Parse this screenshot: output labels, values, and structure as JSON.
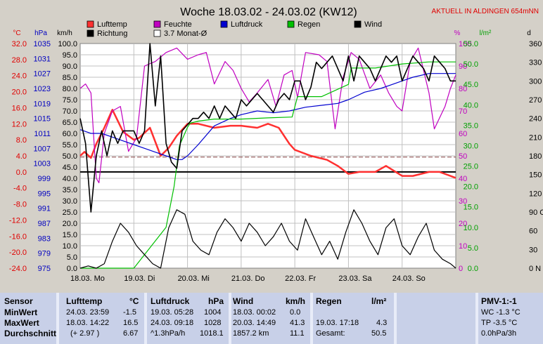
{
  "header": {
    "title": "Woche 18.03.02 - 24.03.02 (KW12)",
    "station": "AKTUELL IN ALDINGEN 654mNN"
  },
  "legend": [
    {
      "label": "Lufttemp",
      "color": "#ff3030",
      "fill": true
    },
    {
      "label": "Feuchte",
      "color": "#c000c0",
      "fill": true
    },
    {
      "label": "Luftdruck",
      "color": "#0000d0",
      "fill": true
    },
    {
      "label": "Regen",
      "color": "#00c000",
      "fill": true
    },
    {
      "label": "Wind",
      "color": "#000000",
      "fill": true
    },
    {
      "label": "Richtung",
      "color": "#000000",
      "fill": true
    },
    {
      "label": "3.7 Monat-Ø",
      "color": "#000000",
      "fill": false
    }
  ],
  "chart_data": {
    "type": "line",
    "x_days": [
      "18.03. Mo",
      "19.03. Di",
      "20.03. Mi",
      "21.03. Do",
      "22.03. Fr",
      "23.03. Sa",
      "24.03. So"
    ],
    "axes": [
      {
        "unit": "°C",
        "range": [
          -24,
          32
        ],
        "ticks": [
          "32.0",
          "28.0",
          "24.0",
          "20.0",
          "16.0",
          "12.0",
          "8.0",
          "4.0",
          "0.0",
          "-4.0",
          "-8.0",
          "-12.0",
          "-16.0",
          "-20.0",
          "-24.0"
        ],
        "color": "#e00000"
      },
      {
        "unit": "hPa",
        "range": [
          975,
          1035
        ],
        "ticks": [
          "1035",
          "1031",
          "1027",
          "1023",
          "1019",
          "1015",
          "1011",
          "1007",
          "1003",
          "999",
          "995",
          "991",
          "987",
          "983",
          "979",
          "975"
        ],
        "color": "#0000c0"
      },
      {
        "unit": "km/h",
        "range": [
          0,
          100
        ],
        "ticks": [
          "100.0",
          "95.0",
          "90.0",
          "85.0",
          "80.0",
          "75.0",
          "70.0",
          "65.0",
          "60.0",
          "55.0",
          "50.0",
          "45.0",
          "40.0",
          "35.0",
          "30.0",
          "25.0",
          "20.0",
          "15.0",
          "10.0",
          "5.0",
          "0.0"
        ],
        "color": "#000000"
      },
      {
        "unit": "%",
        "range": [
          0,
          100
        ],
        "ticks": [
          "100",
          "90",
          "80",
          "70",
          "60",
          "50",
          "40",
          "30",
          "20",
          "10",
          "0"
        ],
        "color": "#c000c0"
      },
      {
        "unit": "l/m²",
        "range": [
          0,
          55
        ],
        "ticks": [
          "55.0",
          "50.0",
          "45.0",
          "40.0",
          "35.0",
          "30.0",
          "25.0",
          "20.0",
          "15.0",
          "10.0",
          "5.0",
          "0.0"
        ],
        "color": "#00a000"
      },
      {
        "unit": "d",
        "range": [
          0,
          360
        ],
        "ticks": [
          "360 N",
          "330",
          "300",
          "270 W",
          "240",
          "210",
          "180 S",
          "150",
          "120",
          "90 O",
          "60",
          "30",
          "0 N"
        ],
        "color": "#000000"
      }
    ],
    "series": [
      {
        "name": "Lufttemp",
        "color": "#ff3030",
        "axis": "°C",
        "x": [
          0,
          0.08,
          0.2,
          0.3,
          0.45,
          0.6,
          0.8,
          1.0,
          1.1,
          1.3,
          1.5,
          1.65,
          1.8,
          2.0,
          2.2,
          2.5,
          2.8,
          3.0,
          3.3,
          3.5,
          3.7,
          3.9,
          4.0,
          4.3,
          4.6,
          4.8,
          5.0,
          5.2,
          5.5,
          5.7,
          6.0,
          6.2,
          6.5,
          6.7,
          7.0
        ],
        "y": [
          4.0,
          5.0,
          3.5,
          7.0,
          11.0,
          15.5,
          10.0,
          8.0,
          8.5,
          11.0,
          4.0,
          6.0,
          9.0,
          12.0,
          12.0,
          11.0,
          11.5,
          11.5,
          11.0,
          12.0,
          11.0,
          7.0,
          5.5,
          4.0,
          3.0,
          1.5,
          -0.5,
          0.0,
          0.0,
          1.5,
          -1.0,
          -1.0,
          0.0,
          0.0,
          -1.5
        ]
      },
      {
        "name": "Feuchte",
        "color": "#c000c0",
        "axis": "%",
        "x": [
          0,
          0.1,
          0.2,
          0.3,
          0.35,
          0.45,
          0.6,
          0.75,
          0.9,
          1.05,
          1.2,
          1.4,
          1.6,
          1.8,
          2.0,
          2.2,
          2.35,
          2.5,
          2.7,
          2.85,
          3.0,
          3.15,
          3.3,
          3.5,
          3.65,
          3.8,
          3.95,
          4.05,
          4.2,
          4.45,
          4.6,
          4.75,
          4.9,
          5.05,
          5.2,
          5.4,
          5.6,
          5.75,
          5.9,
          6.0,
          6.15,
          6.3,
          6.5,
          6.6,
          6.8,
          6.9,
          7.0
        ],
        "y": [
          80,
          82,
          78,
          40,
          38,
          60,
          70,
          72,
          52,
          58,
          90,
          92,
          96,
          98,
          93,
          95,
          96,
          82,
          92,
          88,
          80,
          74,
          78,
          84,
          72,
          86,
          88,
          76,
          96,
          95,
          92,
          62,
          85,
          96,
          93,
          80,
          86,
          78,
          72,
          70,
          92,
          98,
          78,
          62,
          72,
          80,
          86
        ]
      },
      {
        "name": "Luftdruck",
        "color": "#0000d0",
        "axis": "hPa",
        "x": [
          0,
          0.2,
          0.4,
          0.6,
          0.8,
          1.0,
          1.2,
          1.4,
          1.6,
          1.8,
          1.9,
          2.0,
          2.2,
          2.5,
          2.8,
          3.0,
          3.3,
          3.6,
          3.9,
          4.2,
          4.5,
          4.8,
          5.0,
          5.3,
          5.6,
          5.8,
          6.0,
          6.2,
          6.5,
          6.8,
          7.0
        ],
        "y": [
          1012,
          1011,
          1011,
          1010,
          1009,
          1008,
          1007,
          1006,
          1005,
          1004,
          1004,
          1005,
          1008,
          1013,
          1015,
          1016,
          1017,
          1016.5,
          1017,
          1018,
          1018.5,
          1019,
          1020,
          1022,
          1023,
          1024,
          1025,
          1026,
          1027,
          1027,
          1027
        ]
      },
      {
        "name": "Regen",
        "color": "#00c000",
        "axis": "l/m²",
        "x": [
          0,
          1.0,
          1.3,
          1.6,
          1.75,
          1.85,
          2.0,
          2.05,
          2.2,
          2.5,
          3.0,
          3.5,
          3.95,
          4.05,
          4.5,
          5.0,
          5.05,
          5.5,
          6.0,
          6.5,
          7.0
        ],
        "y": [
          0,
          0,
          5,
          10,
          20,
          30,
          34.5,
          35.5,
          36,
          36.5,
          36.5,
          36.8,
          37,
          42,
          42,
          45,
          49,
          49,
          50,
          50.5,
          50.5
        ]
      },
      {
        "name": "Wind",
        "color": "#000000",
        "axis": "km/h",
        "x": [
          0,
          0.15,
          0.3,
          0.45,
          0.6,
          0.75,
          0.9,
          1.05,
          1.2,
          1.35,
          1.5,
          1.65,
          1.8,
          1.95,
          2.1,
          2.25,
          2.4,
          2.55,
          2.7,
          2.85,
          3.0,
          3.15,
          3.3,
          3.45,
          3.6,
          3.75,
          3.9,
          4.05,
          4.2,
          4.35,
          4.5,
          4.65,
          4.8,
          4.95,
          5.1,
          5.25,
          5.4,
          5.55,
          5.7,
          5.85,
          6.0,
          6.15,
          6.3,
          6.45,
          6.6,
          6.75,
          6.9,
          7.0
        ],
        "y": [
          0,
          1,
          0,
          2,
          12,
          20,
          16,
          10,
          6,
          2,
          0,
          18,
          26,
          24,
          12,
          8,
          6,
          16,
          22,
          18,
          12,
          20,
          16,
          10,
          14,
          20,
          12,
          8,
          22,
          14,
          6,
          12,
          4,
          16,
          26,
          20,
          12,
          6,
          18,
          22,
          10,
          6,
          14,
          20,
          8,
          4,
          2,
          0
        ]
      },
      {
        "name": "Richtung",
        "color": "#000000",
        "axis": "d",
        "x": [
          0,
          0.1,
          0.2,
          0.3,
          0.4,
          0.5,
          0.6,
          0.7,
          0.8,
          0.9,
          1.0,
          1.1,
          1.2,
          1.3,
          1.4,
          1.5,
          1.6,
          1.7,
          1.8,
          1.9,
          2.0,
          2.1,
          2.2,
          2.3,
          2.4,
          2.5,
          2.6,
          2.7,
          2.8,
          2.9,
          3.0,
          3.1,
          3.2,
          3.3,
          3.4,
          3.5,
          3.6,
          3.7,
          3.8,
          3.9,
          4.0,
          4.1,
          4.2,
          4.3,
          4.4,
          4.5,
          4.6,
          4.7,
          4.8,
          4.9,
          5.0,
          5.1,
          5.2,
          5.3,
          5.4,
          5.5,
          5.6,
          5.7,
          5.8,
          5.9,
          6.0,
          6.1,
          6.2,
          6.3,
          6.4,
          6.5,
          6.6,
          6.7,
          6.8,
          6.9,
          7.0
        ],
        "y": [
          240,
          200,
          90,
          180,
          220,
          180,
          220,
          200,
          220,
          220,
          220,
          200,
          220,
          360,
          260,
          340,
          200,
          170,
          160,
          220,
          230,
          240,
          240,
          250,
          240,
          260,
          240,
          260,
          250,
          240,
          270,
          260,
          270,
          280,
          270,
          260,
          250,
          270,
          280,
          270,
          300,
          300,
          270,
          290,
          330,
          320,
          330,
          340,
          320,
          300,
          340,
          300,
          340,
          330,
          320,
          300,
          320,
          340,
          330,
          340,
          300,
          320,
          340,
          330,
          320,
          300,
          340,
          330,
          320,
          300,
          300
        ]
      }
    ],
    "reference_lines": [
      {
        "name": "3.7 Monat-Ø",
        "axis": "°C",
        "value": 3.7,
        "style": "dashed",
        "color": "#884444"
      },
      {
        "name": "zero",
        "axis": "°C",
        "value": 0,
        "style": "solid",
        "color": "#000000"
      }
    ],
    "grid": true
  },
  "table": {
    "sensor_col": {
      "title": "Sensor",
      "rows": [
        "MinWert",
        "MaxWert",
        "Durchschnitt"
      ]
    },
    "groups": [
      {
        "title": "Lufttemp",
        "unit": "°C",
        "rows": [
          [
            "24.03.  23:59",
            "-1.5"
          ],
          [
            "18.03.  14:22",
            "16.5"
          ],
          [
            "(+ 2.97 )",
            "6.67"
          ]
        ]
      },
      {
        "title": "Luftdruck",
        "unit": "hPa",
        "rows": [
          [
            "19.03.  05:28",
            "1004"
          ],
          [
            "24.03.  09:18",
            "1028"
          ],
          [
            "^1.3hPa/h",
            "1018.1"
          ]
        ]
      },
      {
        "title": "Wind",
        "unit": "km/h",
        "rows": [
          [
            "18.03.  00:02",
            "0.0"
          ],
          [
            "20.03.  14:49",
            "41.3"
          ],
          [
            "1857.2 km",
            "11.1"
          ]
        ]
      },
      {
        "title": "Regen",
        "unit": "l/m²",
        "rows": [
          [
            "",
            ""
          ],
          [
            "19.03.  17:18",
            "4.3"
          ],
          [
            "Gesamt:",
            "50.5"
          ]
        ]
      }
    ],
    "pmv": {
      "title": "PMV-1:-1",
      "lines": [
        "WC -1.3 °C",
        "TP -3.5 °C",
        "0.0hPa/3h"
      ]
    }
  }
}
